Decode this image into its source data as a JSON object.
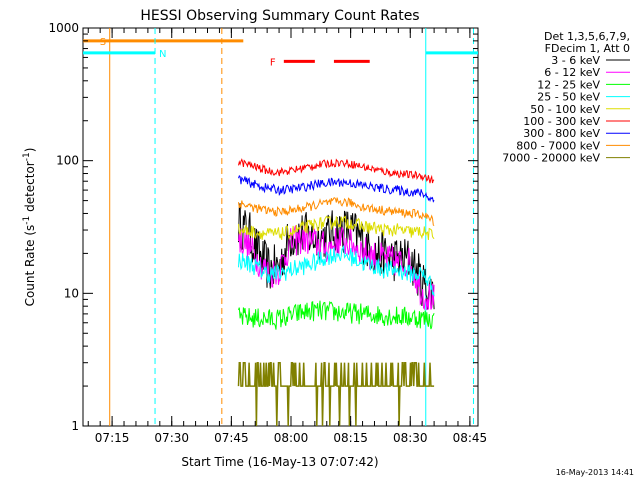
{
  "chart_data": {
    "type": "line",
    "title": "HESSI Observing Summary Count Rates",
    "xlabel": "Start Time (16-May-13 07:07:42)",
    "ylabel_parts": [
      "Count Rate (s",
      "-1",
      " detector",
      "-1",
      ")"
    ],
    "yscale": "log",
    "ylim": [
      1,
      1000
    ],
    "xlim": [
      7.128,
      8.784
    ],
    "x_ticks": [
      {
        "t": 7.25,
        "label": "07:15"
      },
      {
        "t": 7.5,
        "label": "07:30"
      },
      {
        "t": 7.75,
        "label": "07:45"
      },
      {
        "t": 8.0,
        "label": "08:00"
      },
      {
        "t": 8.25,
        "label": "08:15"
      },
      {
        "t": 8.5,
        "label": "08:30"
      },
      {
        "t": 8.75,
        "label": "08:45"
      }
    ],
    "y_ticks": [
      {
        "v": 1,
        "label": "1"
      },
      {
        "v": 10,
        "label": "10"
      },
      {
        "v": 100,
        "label": "100"
      },
      {
        "v": 1000,
        "label": "1000"
      }
    ],
    "legend_header": [
      "Det 1,3,5,6,7,9,",
      "FDecim 1, Att 0"
    ],
    "legend_position": "outside-right",
    "series": [
      {
        "name": "3 - 6 keV",
        "color": "#000000",
        "start": 7.78,
        "end": 8.6,
        "x": [
          7.78,
          7.83,
          7.87,
          7.91,
          7.95,
          8.0,
          8.05,
          8.1,
          8.15,
          8.2,
          8.25,
          8.3,
          8.35,
          8.4,
          8.45,
          8.5,
          8.55,
          8.6
        ],
        "y": [
          34,
          27,
          19,
          15,
          16,
          27,
          28,
          26,
          27,
          30,
          30,
          25,
          20,
          19,
          18,
          18,
          12,
          10
        ]
      },
      {
        "name": "6 - 12 keV",
        "color": "#ff00ff",
        "start": 7.78,
        "end": 8.6,
        "x": [
          7.78,
          7.83,
          7.87,
          7.91,
          7.95,
          8.0,
          8.05,
          8.1,
          8.15,
          8.2,
          8.25,
          8.3,
          8.35,
          8.4,
          8.45,
          8.5,
          8.55,
          8.6
        ],
        "y": [
          26,
          22,
          17,
          14,
          15,
          24,
          26,
          24,
          22,
          25,
          24,
          21,
          19,
          18,
          17,
          17,
          10,
          9
        ]
      },
      {
        "name": "12 - 25 keV",
        "color": "#00ff00",
        "start": 7.78,
        "end": 8.6,
        "x": [
          7.78,
          7.85,
          7.9,
          7.95,
          8.0,
          8.05,
          8.1,
          8.15,
          8.2,
          8.25,
          8.3,
          8.35,
          8.4,
          8.45,
          8.5,
          8.55,
          8.6
        ],
        "y": [
          6.6,
          6.5,
          6.4,
          6.4,
          6.8,
          7.2,
          7.4,
          7.3,
          7.2,
          7.1,
          7.0,
          6.9,
          6.8,
          6.7,
          6.6,
          6.5,
          6.3
        ]
      },
      {
        "name": "25 - 50 keV",
        "color": "#00ffff",
        "start": 7.78,
        "end": 8.6,
        "x": [
          7.78,
          7.85,
          7.9,
          7.95,
          8.0,
          8.05,
          8.1,
          8.15,
          8.2,
          8.25,
          8.3,
          8.35,
          8.4,
          8.45,
          8.5,
          8.55,
          8.6
        ],
        "y": [
          18,
          16,
          14,
          14,
          15,
          16,
          17,
          19,
          20,
          19,
          17,
          16,
          15,
          15,
          14,
          14,
          11
        ]
      },
      {
        "name": "50 - 100 keV",
        "color": "#dddd00",
        "start": 7.78,
        "end": 8.6,
        "x": [
          7.78,
          7.85,
          7.9,
          7.95,
          8.0,
          8.05,
          8.1,
          8.15,
          8.2,
          8.25,
          8.3,
          8.35,
          8.4,
          8.45,
          8.5,
          8.55,
          8.6
        ],
        "y": [
          30,
          29,
          28,
          28,
          29,
          31,
          33,
          34,
          35,
          34,
          32,
          31,
          30,
          30,
          29,
          29,
          27
        ]
      },
      {
        "name": "100 - 300 keV",
        "color": "#ff0000",
        "start": 7.78,
        "end": 8.6,
        "x": [
          7.78,
          7.85,
          7.9,
          7.95,
          8.0,
          8.05,
          8.1,
          8.15,
          8.2,
          8.25,
          8.3,
          8.35,
          8.4,
          8.45,
          8.5,
          8.55,
          8.6
        ],
        "y": [
          98,
          90,
          84,
          82,
          84,
          88,
          92,
          95,
          97,
          95,
          90,
          86,
          82,
          80,
          78,
          77,
          70
        ]
      },
      {
        "name": "300 - 800 keV",
        "color": "#0000ff",
        "start": 7.78,
        "end": 8.6,
        "x": [
          7.78,
          7.85,
          7.9,
          7.95,
          8.0,
          8.05,
          8.1,
          8.15,
          8.2,
          8.25,
          8.3,
          8.35,
          8.4,
          8.45,
          8.5,
          8.55,
          8.6
        ],
        "y": [
          73,
          66,
          62,
          60,
          61,
          63,
          66,
          68,
          69,
          68,
          65,
          63,
          61,
          60,
          58,
          57,
          50
        ]
      },
      {
        "name": "800 - 7000 keV",
        "color": "#ff8c00",
        "start": 7.78,
        "end": 8.6,
        "x": [
          7.78,
          7.85,
          7.9,
          7.95,
          8.0,
          8.05,
          8.1,
          8.15,
          8.2,
          8.25,
          8.3,
          8.35,
          8.4,
          8.45,
          8.5,
          8.55,
          8.6
        ],
        "y": [
          48,
          44,
          42,
          41,
          42,
          44,
          46,
          48,
          49,
          48,
          45,
          43,
          42,
          41,
          40,
          39,
          35
        ]
      },
      {
        "name": "7000 - 20000 keV",
        "color": "#808000",
        "start": 7.78,
        "end": 8.6,
        "x": [
          7.78,
          7.85,
          7.9,
          7.95,
          8.0,
          8.05,
          8.1,
          8.15,
          8.2,
          8.25,
          8.3,
          8.35,
          8.4,
          8.45,
          8.5,
          8.55,
          8.6
        ],
        "y": [
          2,
          2,
          2,
          2.5,
          2,
          2.5,
          3,
          3,
          2.5,
          2,
          2,
          2,
          2,
          2,
          2,
          1.5,
          1.5
        ]
      }
    ],
    "flag_lines": [
      {
        "id": "saa",
        "label": "S",
        "color": "#ff8c00",
        "y_level": 800,
        "segments": [
          [
            7.128,
            7.8
          ]
        ],
        "solid_x": [
          7.24
        ],
        "dashed_x": [
          7.71
        ]
      },
      {
        "id": "night",
        "label": "N",
        "color": "#00ffff",
        "y_level": 650,
        "segments": [
          [
            7.128,
            7.43
          ],
          [
            8.565,
            8.784
          ]
        ],
        "solid_x": [
          8.565
        ],
        "dashed_x": [
          7.43,
          8.765
        ]
      },
      {
        "id": "flare",
        "label": "F",
        "color": "#ff0000",
        "y_level": 560,
        "segments": [
          [
            7.97,
            8.1
          ],
          [
            8.18,
            8.33
          ]
        ],
        "solid_x": [],
        "dashed_x": []
      }
    ]
  },
  "footer": {
    "timestamp": "16-May-2013 14:41"
  }
}
